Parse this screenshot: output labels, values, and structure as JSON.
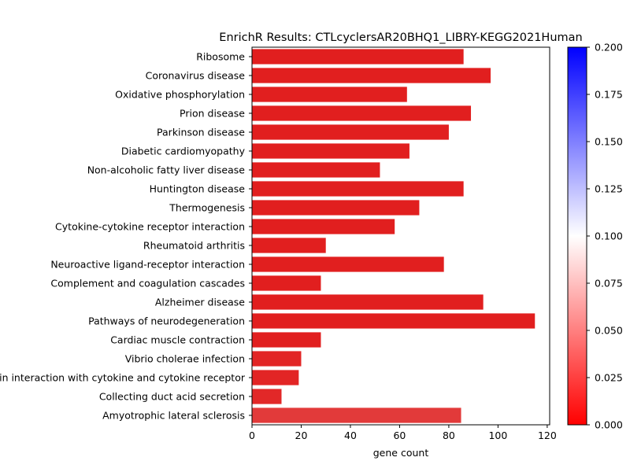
{
  "chart_data": {
    "type": "bar",
    "orientation": "horizontal",
    "title": "EnrichR Results: CTLcyclersAR20BHQ1_LIBRY-KEGG2021Human",
    "xlabel": "gene count",
    "ylabel": "",
    "xlim": [
      0,
      121
    ],
    "xticks": [
      0,
      20,
      40,
      60,
      80,
      100,
      120
    ],
    "grid": false,
    "categories": [
      "Ribosome",
      "Coronavirus disease",
      "Oxidative phosphorylation",
      "Prion disease",
      "Parkinson disease",
      "Diabetic cardiomyopathy",
      "Non-alcoholic fatty liver disease",
      "Huntington disease",
      "Thermogenesis",
      "Cytokine-cytokine receptor interaction",
      "Rheumatoid arthritis",
      "Neuroactive ligand-receptor interaction",
      "Complement and coagulation cascades",
      "Alzheimer disease",
      "Pathways of neurodegeneration",
      "Cardiac muscle contraction",
      "Vibrio cholerae infection",
      "Viral protein interaction with cytokine and cytokine receptor",
      "Collecting duct acid secretion",
      "Amyotrophic lateral sclerosis"
    ],
    "values": [
      86,
      97,
      63,
      89,
      80,
      64,
      52,
      86,
      68,
      58,
      30,
      78,
      28,
      94,
      115,
      28,
      20,
      19,
      12,
      85
    ],
    "colors": [
      "#e11f1f",
      "#e11f1f",
      "#e11f1f",
      "#e11f1f",
      "#e11f1f",
      "#e11f1f",
      "#e11f1f",
      "#e11f1f",
      "#e11f1f",
      "#e11f1f",
      "#e11f1f",
      "#e11f1f",
      "#e11f1f",
      "#e11f1f",
      "#e11f1f",
      "#e11f1f",
      "#e22525",
      "#e22525",
      "#e22828",
      "#e23a3a"
    ],
    "colorbar": {
      "min": 0.0,
      "max": 0.2,
      "ticks": [
        "0.000",
        "0.025",
        "0.050",
        "0.075",
        "0.100",
        "0.125",
        "0.150",
        "0.175",
        "0.200"
      ],
      "colors": [
        "#ff0000",
        "#ffffff",
        "#0000ff"
      ]
    }
  }
}
